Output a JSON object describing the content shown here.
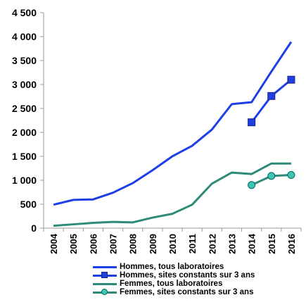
{
  "chart_data": {
    "type": "line",
    "title": "",
    "xlabel": "",
    "ylabel": "",
    "categories": [
      "2004",
      "2005",
      "2006",
      "2007",
      "2008",
      "2009",
      "2010",
      "2011",
      "2012",
      "2013",
      "2014",
      "2015",
      "2016"
    ],
    "ylim": [
      0,
      4500
    ],
    "yticks": [
      0,
      500,
      1000,
      1500,
      2000,
      2500,
      3000,
      3500,
      4000,
      4500
    ],
    "ytick_labels": [
      "0",
      "500",
      "1 000",
      "1 500",
      "2 000",
      "2 500",
      "3 000",
      "3 500",
      "4 000",
      "4 500"
    ],
    "grid": false,
    "legend_position": "bottom",
    "series": [
      {
        "name": "Hommes, tous laboratoires",
        "color": "#1f3fe6",
        "marker": "none",
        "values": [
          490,
          590,
          600,
          740,
          940,
          1210,
          1500,
          1720,
          2060,
          2590,
          2630,
          3270,
          3890
        ]
      },
      {
        "name": "Hommes, sites constants sur 3 ans",
        "color": "#1f3fe6",
        "marker": "square",
        "values": [
          null,
          null,
          null,
          null,
          null,
          null,
          null,
          null,
          null,
          null,
          2210,
          2760,
          3100
        ]
      },
      {
        "name": "Femmes, tous laboratoires",
        "color": "#2e8b7a",
        "marker": "none",
        "values": [
          50,
          80,
          110,
          130,
          120,
          220,
          300,
          490,
          930,
          1160,
          1130,
          1350,
          1350
        ]
      },
      {
        "name": "Femmes, sites constants sur 3 ans",
        "color": "#2e8b7a",
        "marker": "circle",
        "values": [
          null,
          null,
          null,
          null,
          null,
          null,
          null,
          null,
          null,
          null,
          900,
          1090,
          1110
        ]
      }
    ]
  }
}
